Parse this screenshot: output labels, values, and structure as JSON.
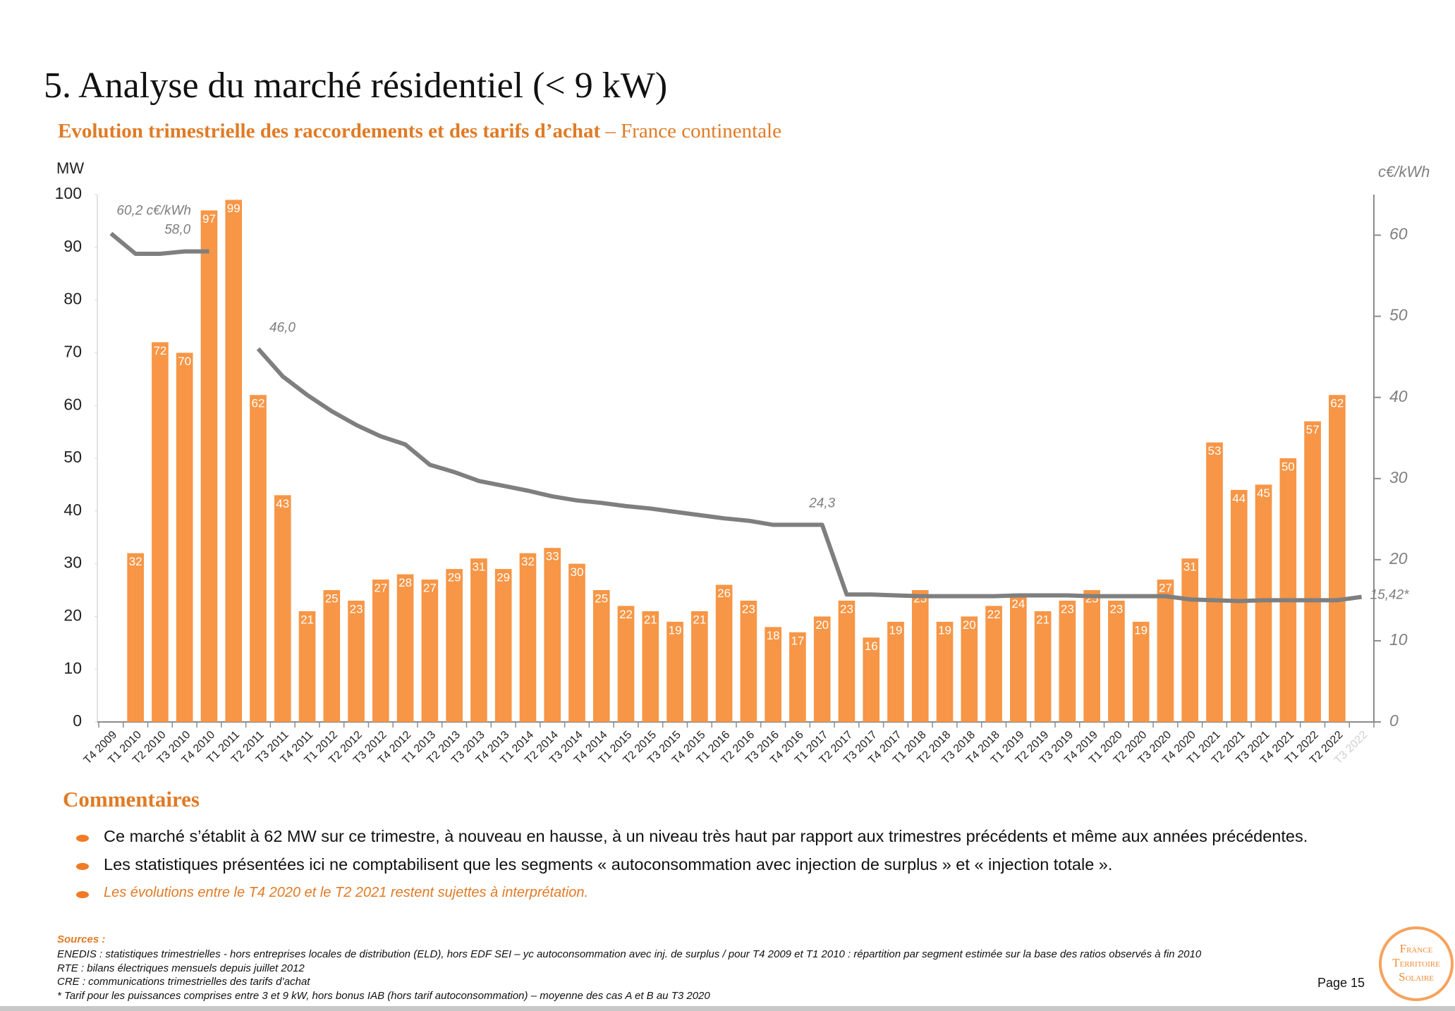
{
  "header": {
    "title": "5. Analyse du marché résidentiel (< 9 kW)",
    "subtitle_bold": "Evolution trimestrielle des raccordements et des tarifs d’achat",
    "subtitle": "– France continentale"
  },
  "chart_data": {
    "type": "combo",
    "y_label": "MW",
    "y2_label": "c€/kWh",
    "categories": [
      "T4 2009",
      "T1 2010",
      "T2 2010",
      "T3 2010",
      "T4 2010",
      "T1 2011",
      "T2 2011",
      "T3 2011",
      "T4 2011",
      "T1 2012",
      "T2 2012",
      "T3 2012",
      "T4 2012",
      "T1 2013",
      "T2 2013",
      "T3 2013",
      "T4 2013",
      "T1 2014",
      "T2 2014",
      "T3 2014",
      "T4 2014",
      "T1 2015",
      "T2 2015",
      "T3 2015",
      "T4 2015",
      "T1 2016",
      "T2 2016",
      "T3 2016",
      "T4 2016",
      "T1 2017",
      "T2 2017",
      "T3 2017",
      "T4 2017",
      "T1 2018",
      "T2 2018",
      "T3 2018",
      "T4 2018",
      "T1 2019",
      "T2 2019",
      "T3 2019",
      "T4 2019",
      "T1 2020",
      "T2 2020",
      "T3 2020",
      "T4 2020",
      "T1 2021",
      "T2 2021",
      "T3 2021",
      "T4 2021",
      "T1 2022",
      "T2 2022",
      "T3 2022"
    ],
    "series": [
      {
        "type": "bar",
        "color": "#f79646",
        "values": [
          null,
          32,
          72,
          70,
          97,
          99,
          62,
          43,
          21,
          25,
          23,
          27,
          28,
          27,
          29,
          31,
          29,
          32,
          33,
          30,
          25,
          22,
          21,
          19,
          21,
          26,
          23,
          18,
          17,
          20,
          23,
          16,
          19,
          25,
          19,
          20,
          22,
          24,
          21,
          23,
          25,
          23,
          19,
          27,
          31,
          53,
          44,
          45,
          50,
          57,
          62,
          null
        ]
      },
      {
        "type": "line",
        "axis": "y2",
        "color": "#7f7f7f",
        "values": [
          60.2,
          57.7,
          57.7,
          58.0,
          58.0,
          null,
          46.0,
          42.6,
          40.3,
          38.3,
          36.6,
          35.2,
          34.2,
          31.7,
          30.8,
          29.7,
          29.1,
          28.5,
          27.8,
          27.3,
          27.0,
          26.6,
          26.3,
          25.9,
          25.5,
          25.1,
          24.8,
          24.3,
          24.3,
          24.3,
          15.7,
          15.7,
          15.6,
          15.5,
          15.5,
          15.5,
          15.5,
          15.6,
          15.6,
          15.6,
          15.5,
          15.5,
          15.5,
          15.5,
          15.1,
          15.0,
          14.9,
          15.0,
          15.0,
          15.0,
          15.0,
          15.42
        ],
        "value_labels": [
          "60,2 c€/kWh",
          null,
          null,
          "58,0",
          null,
          null,
          "46,0",
          null,
          null,
          null,
          null,
          null,
          null,
          null,
          null,
          null,
          null,
          null,
          null,
          null,
          null,
          null,
          null,
          null,
          null,
          null,
          null,
          null,
          null,
          "24,3",
          null,
          null,
          null,
          null,
          null,
          null,
          null,
          null,
          null,
          null,
          null,
          null,
          null,
          null,
          null,
          null,
          null,
          null,
          null,
          null,
          null,
          "15,42*"
        ]
      }
    ],
    "ylim": [
      0,
      100
    ],
    "yticks": [
      0,
      10,
      20,
      30,
      40,
      50,
      60,
      70,
      80,
      90,
      100
    ],
    "y2lim": [
      0,
      65
    ],
    "y2ticks": [
      0,
      10,
      20,
      30,
      40,
      50,
      60
    ]
  },
  "comments": {
    "title": "Commentaires",
    "items": [
      "Ce marché s’établit à 62 MW sur ce trimestre, à nouveau en hausse, à un niveau très haut par rapport aux trimestres précédents et même aux années précédentes.",
      "Les statistiques présentées ici ne comptabilisent que les segments « autoconsommation avec injection de surplus » et « injection totale ».",
      "Les évolutions entre le T4 2020 et le T2 2021 restent sujettes à interprétation."
    ]
  },
  "sources": {
    "title": "Sources :",
    "lines": [
      "ENEDIS : statistiques trimestrielles - hors entreprises locales de distribution (ELD), hors EDF SEI – yc autoconsommation avec inj. de surplus / pour T4 2009 et T1 2010 : répartition par segment estimée sur la base des ratios observés à fin 2010",
      "RTE : bilans électriques mensuels depuis juillet 2012",
      "CRE : communications trimestrielles des tarifs d’achat",
      "* Tarif pour les puissances comprises entre 3 et 9 kW, hors bonus IAB (hors tarif autoconsommation) – moyenne des cas A et B au T3 2020"
    ]
  },
  "footer": {
    "page": "Page 15"
  },
  "logo": [
    "France",
    "Territoire",
    "Solaire"
  ]
}
